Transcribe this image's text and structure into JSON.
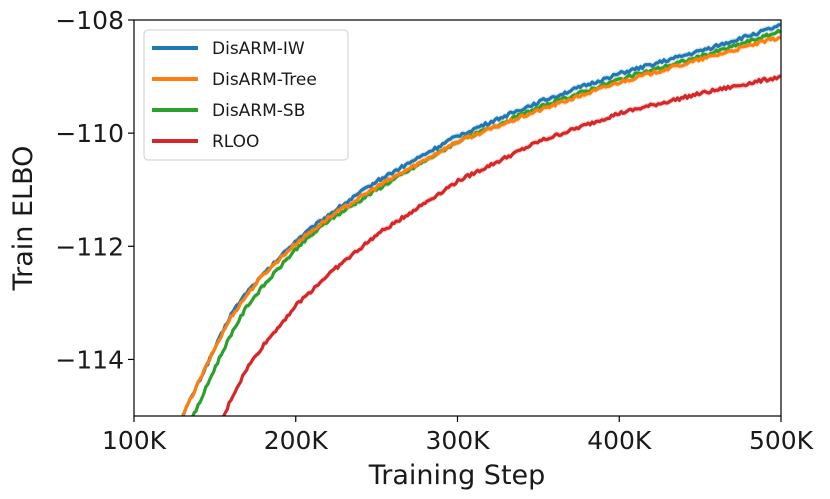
{
  "chart_data": {
    "type": "line",
    "title": "",
    "xlabel": "Training Step",
    "ylabel": "Train ELBO",
    "xlim": [
      100000,
      500000
    ],
    "ylim": [
      -115,
      -108
    ],
    "x_ticks": [
      100000,
      200000,
      300000,
      400000,
      500000
    ],
    "x_tick_labels": [
      "100K",
      "200K",
      "300K",
      "400K",
      "500K"
    ],
    "y_ticks": [
      -114,
      -112,
      -110,
      -108
    ],
    "y_tick_labels": [
      "−114",
      "−112",
      "−110",
      "−108"
    ],
    "grid": false,
    "legend_position": "top-left",
    "x": [
      130000,
      140000,
      150000,
      160000,
      170000,
      180000,
      200000,
      220000,
      250000,
      300000,
      350000,
      400000,
      450000,
      500000
    ],
    "series": [
      {
        "name": "DisARM-IW",
        "color": "#1f77b4",
        "values": [
          -115.0,
          -114.4,
          -113.8,
          -113.2,
          -112.8,
          -112.5,
          -111.9,
          -111.45,
          -110.85,
          -110.05,
          -109.45,
          -108.95,
          -108.55,
          -108.1
        ]
      },
      {
        "name": "DisARM-Tree",
        "color": "#ff7f0e",
        "values": [
          -115.0,
          -114.4,
          -113.8,
          -113.25,
          -112.85,
          -112.5,
          -111.95,
          -111.5,
          -110.95,
          -110.15,
          -109.6,
          -109.1,
          -108.7,
          -108.3
        ]
      },
      {
        "name": "DisARM-SB",
        "color": "#2ca02c",
        "values": [
          -115.4,
          -114.8,
          -114.15,
          -113.55,
          -113.05,
          -112.7,
          -112.05,
          -111.55,
          -111.0,
          -110.15,
          -109.55,
          -109.05,
          -108.65,
          -108.2
        ]
      },
      {
        "name": "RLOO",
        "color": "#d62728",
        "values": [
          -116.5,
          -116.0,
          -115.4,
          -114.7,
          -114.15,
          -113.75,
          -113.05,
          -112.5,
          -111.8,
          -110.85,
          -110.15,
          -109.65,
          -109.3,
          -109.0
        ]
      }
    ]
  }
}
